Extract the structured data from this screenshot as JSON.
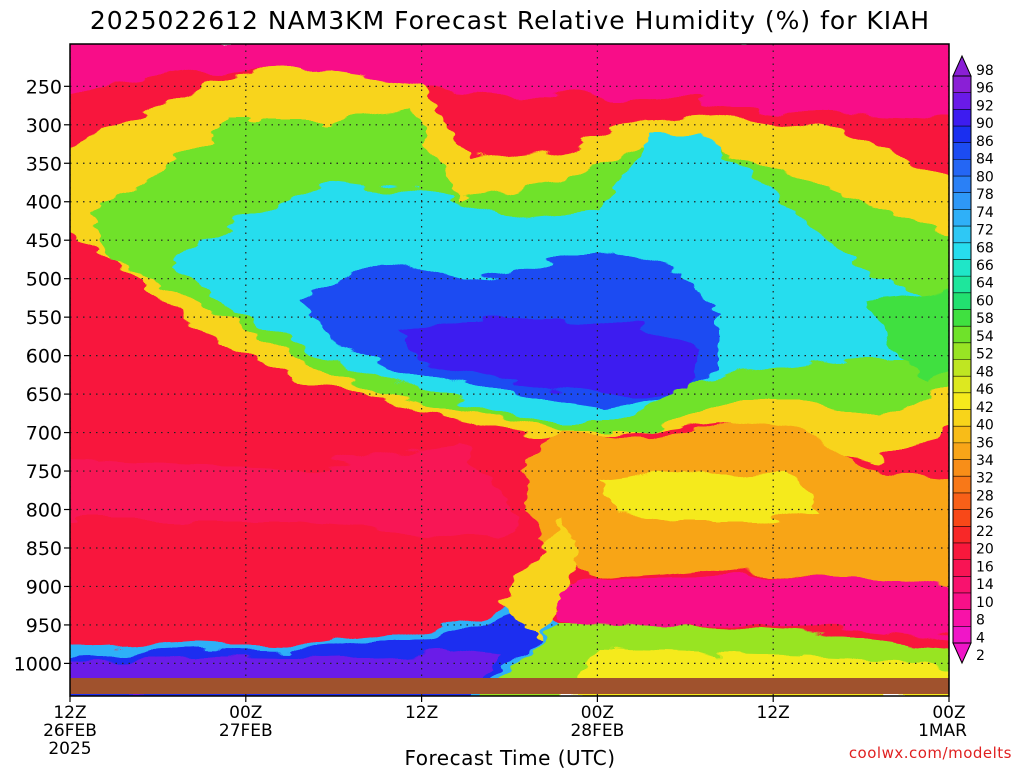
{
  "chart_data": {
    "type": "heatmap",
    "title": "2025022612 NAM3KM Forecast Relative Humidity (%) for KIAH",
    "xlabel": "Forecast Time (UTC)",
    "ylabel": "",
    "x_unit": "hours",
    "x_range": [
      0,
      60
    ],
    "y_ticks": [
      250,
      300,
      350,
      400,
      450,
      500,
      550,
      600,
      650,
      700,
      750,
      800,
      850,
      900,
      950,
      1000
    ],
    "x_ticks": [
      {
        "hour": 0,
        "lines": [
          "12Z",
          "26FEB",
          "2025"
        ]
      },
      {
        "hour": 12,
        "lines": [
          "00Z",
          "27FEB"
        ]
      },
      {
        "hour": 24,
        "lines": [
          "12Z"
        ]
      },
      {
        "hour": 36,
        "lines": [
          "00Z",
          "28FEB"
        ]
      },
      {
        "hour": 48,
        "lines": [
          "12Z"
        ]
      },
      {
        "hour": 60,
        "lines": [
          "00Z",
          "1MAR"
        ]
      }
    ],
    "colorbar": {
      "labels": [
        "98",
        "96",
        "92",
        "90",
        "86",
        "84",
        "80",
        "78",
        "74",
        "72",
        "68",
        "66",
        "64",
        "60",
        "58",
        "54",
        "52",
        "48",
        "46",
        "42",
        "40",
        "36",
        "34",
        "32",
        "28",
        "26",
        "22",
        "20",
        "16",
        "14",
        "10",
        "8",
        "4",
        "2"
      ],
      "colors": [
        "#8a1fd6",
        "#6a1ae8",
        "#3d1cf0",
        "#1a2ff0",
        "#1c4cf2",
        "#2466f4",
        "#2a80f6",
        "#2e98f7",
        "#2fb0f8",
        "#2ec8f5",
        "#27ddee",
        "#1fe6c8",
        "#1ee69c",
        "#22e070",
        "#40e040",
        "#6fe22a",
        "#98e424",
        "#bfe622",
        "#dde820",
        "#f5ea1c",
        "#f8d41a",
        "#f8bc18",
        "#f8a518",
        "#f88e18",
        "#f87818",
        "#f86018",
        "#f84818",
        "#f82828",
        "#f8183c",
        "#f81454",
        "#f8126e",
        "#f81088",
        "#f812a8",
        "#f016c8"
      ],
      "end_arrows": true
    },
    "surface_band": "#a0522d",
    "grid": "dotted",
    "annotation": "coolwx.com/modelts"
  }
}
